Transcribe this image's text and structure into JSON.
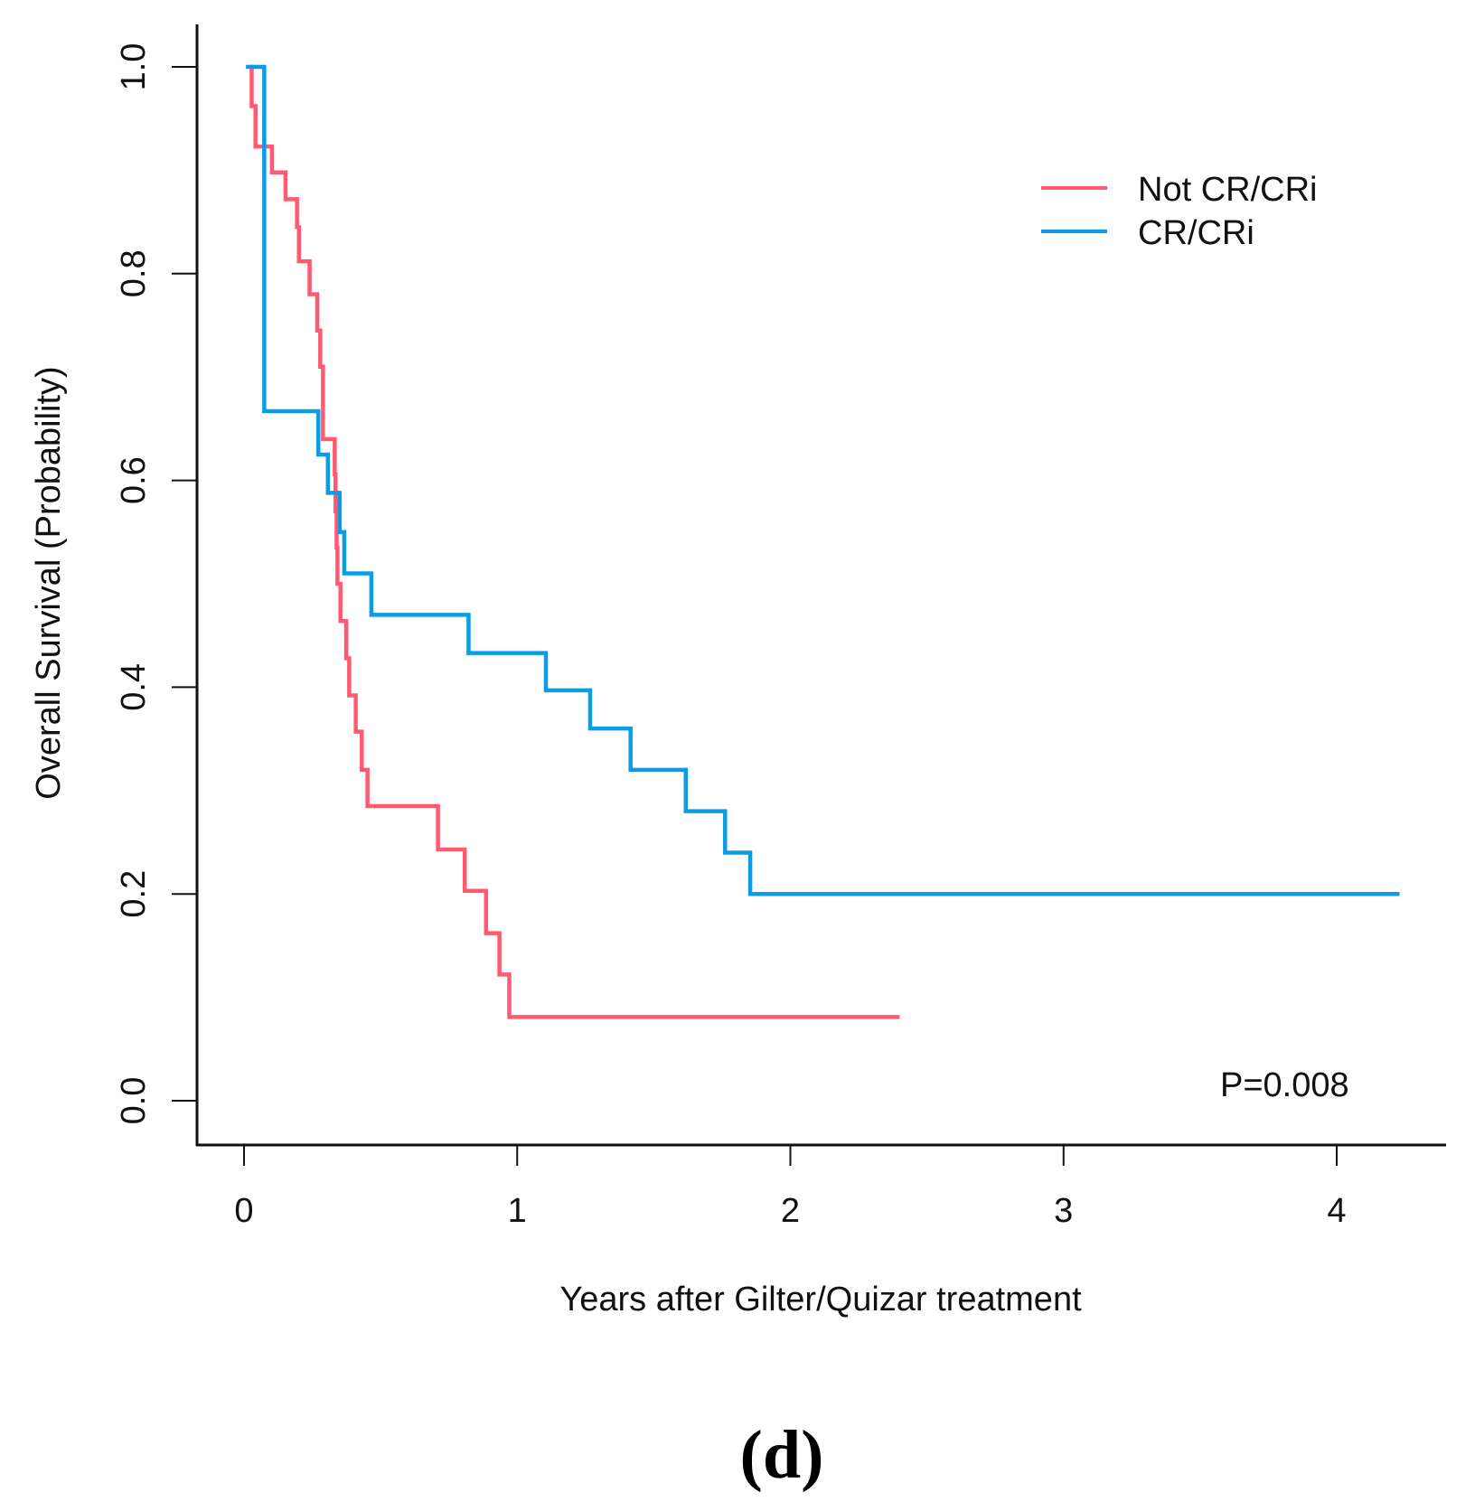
{
  "chart_data": {
    "type": "line",
    "subtype": "kaplan-meier-step",
    "xlabel": "Years after Gilter/Quizar treatment",
    "ylabel": "Overall Survival (Probability)",
    "xlim": [
      0,
      4.4
    ],
    "ylim": [
      0,
      1.0
    ],
    "xticks": [
      "0",
      "1",
      "2",
      "3",
      "4"
    ],
    "yticks": [
      "0.0",
      "0.2",
      "0.4",
      "0.6",
      "0.8",
      "1.0"
    ],
    "grid": false,
    "legend_position": "top-right",
    "annotation": "P=0.008",
    "caption": "(d)",
    "series": [
      {
        "name": "Not CR/CRi",
        "color": "#FF5A72",
        "start": [
          0.02,
          1.0
        ],
        "steps": [
          [
            0.028,
            0.962
          ],
          [
            0.042,
            0.923
          ],
          [
            0.102,
            0.898
          ],
          [
            0.152,
            0.872
          ],
          [
            0.194,
            0.845
          ],
          [
            0.201,
            0.812
          ],
          [
            0.24,
            0.78
          ],
          [
            0.268,
            0.745
          ],
          [
            0.279,
            0.71
          ],
          [
            0.289,
            0.64
          ],
          [
            0.332,
            0.606
          ],
          [
            0.335,
            0.57
          ],
          [
            0.339,
            0.535
          ],
          [
            0.342,
            0.5
          ],
          [
            0.353,
            0.464
          ],
          [
            0.374,
            0.428
          ],
          [
            0.385,
            0.392
          ],
          [
            0.409,
            0.357
          ],
          [
            0.431,
            0.32
          ],
          [
            0.452,
            0.285
          ],
          [
            0.71,
            0.243
          ],
          [
            0.808,
            0.203
          ],
          [
            0.886,
            0.162
          ],
          [
            0.935,
            0.122
          ],
          [
            0.971,
            0.081
          ]
        ],
        "end": 2.4
      },
      {
        "name": "CR/CRi",
        "color": "#0A9DE6",
        "start": [
          0.007,
          1.0
        ],
        "steps": [
          [
            0.074,
            0.667
          ],
          [
            0.272,
            0.625
          ],
          [
            0.307,
            0.588
          ],
          [
            0.35,
            0.55
          ],
          [
            0.367,
            0.51
          ],
          [
            0.466,
            0.47
          ],
          [
            0.822,
            0.433
          ],
          [
            1.105,
            0.397
          ],
          [
            1.267,
            0.36
          ],
          [
            1.415,
            0.32
          ],
          [
            1.617,
            0.28
          ],
          [
            1.761,
            0.24
          ],
          [
            1.853,
            0.2
          ]
        ],
        "end": 4.23
      }
    ]
  }
}
